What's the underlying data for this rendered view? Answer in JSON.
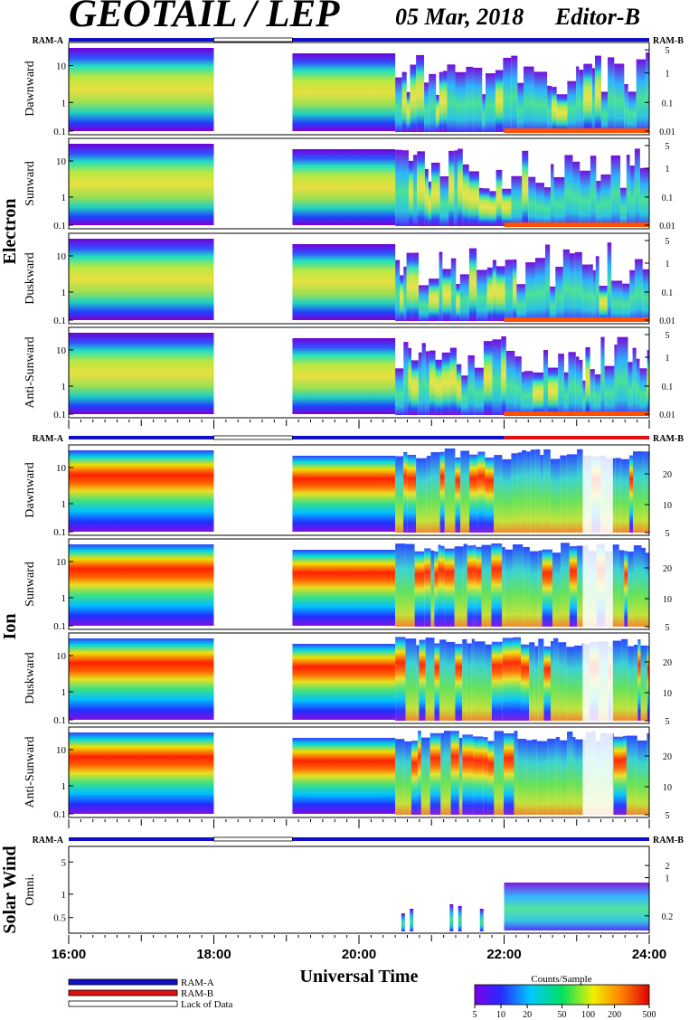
{
  "header": {
    "title": "GEOTAIL / LEP",
    "date": "05 Mar, 2018",
    "editor": "Editor-B"
  },
  "mode_bar": {
    "left_label": "RAM-A",
    "right_label": "RAM-B"
  },
  "groups": {
    "electron": "Electron",
    "ion": "Ion",
    "solar_wind": "Solar Wind"
  },
  "colors": {
    "ram_a": "#1010c8",
    "ram_b": "#e01010",
    "lack": "#ffffff",
    "frame": "#000000"
  },
  "chart_data": {
    "type": "heatmap",
    "xlabel": "Universal Time",
    "x_range": [
      "16:00",
      "24:00"
    ],
    "x_ticks": [
      "16:00",
      "18:00",
      "20:00",
      "22:00",
      "24:00"
    ],
    "data_gap": {
      "start": "18:00",
      "end": "19:05"
    },
    "colorbar": {
      "label": "Counts/Sample",
      "ticks": [
        "5",
        "10",
        "20",
        "50",
        "100",
        "200",
        "500"
      ]
    },
    "legend": [
      {
        "label": "RAM-A",
        "color": "#1010c8"
      },
      {
        "label": "RAM-B",
        "color": "#e01010"
      },
      {
        "label": "Lack of Data",
        "color": "#ffffff"
      }
    ],
    "panels": [
      {
        "group": "electron",
        "label": "Dawnward",
        "left_ticks": [
          "10",
          "1",
          "0.1"
        ],
        "right_ticks": [
          "5",
          "1",
          "0.1",
          "0.01"
        ]
      },
      {
        "group": "electron",
        "label": "Sunward",
        "left_ticks": [
          "10",
          "1",
          "0.1"
        ],
        "right_ticks": [
          "5",
          "1",
          "0.1",
          "0.01"
        ]
      },
      {
        "group": "electron",
        "label": "Duskward",
        "left_ticks": [
          "10",
          "1",
          "0.1"
        ],
        "right_ticks": [
          "5",
          "1",
          "0.1",
          "0.01"
        ]
      },
      {
        "group": "electron",
        "label": "Anti-Sunward",
        "left_ticks": [
          "10",
          "1",
          "0.1"
        ],
        "right_ticks": [
          "5",
          "1",
          "0.1",
          "0.01"
        ]
      },
      {
        "group": "ion",
        "label": "Dawnward",
        "left_ticks": [
          "10",
          "1",
          "0.1"
        ],
        "right_ticks": [
          "20",
          "10",
          "5"
        ]
      },
      {
        "group": "ion",
        "label": "Sunward",
        "left_ticks": [
          "10",
          "1",
          "0.1"
        ],
        "right_ticks": [
          "20",
          "10",
          "5"
        ]
      },
      {
        "group": "ion",
        "label": "Duskward",
        "left_ticks": [
          "10",
          "1",
          "0.1"
        ],
        "right_ticks": [
          "20",
          "10",
          "5"
        ]
      },
      {
        "group": "ion",
        "label": "Anti-Sunward",
        "left_ticks": [
          "10",
          "1",
          "0.1"
        ],
        "right_ticks": [
          "20",
          "10",
          "5"
        ]
      },
      {
        "group": "solar_wind",
        "label": "Omni.",
        "left_ticks": [
          "5",
          "1",
          "0.5"
        ],
        "right_ticks": [
          "2",
          "1",
          "0.2"
        ]
      }
    ]
  }
}
